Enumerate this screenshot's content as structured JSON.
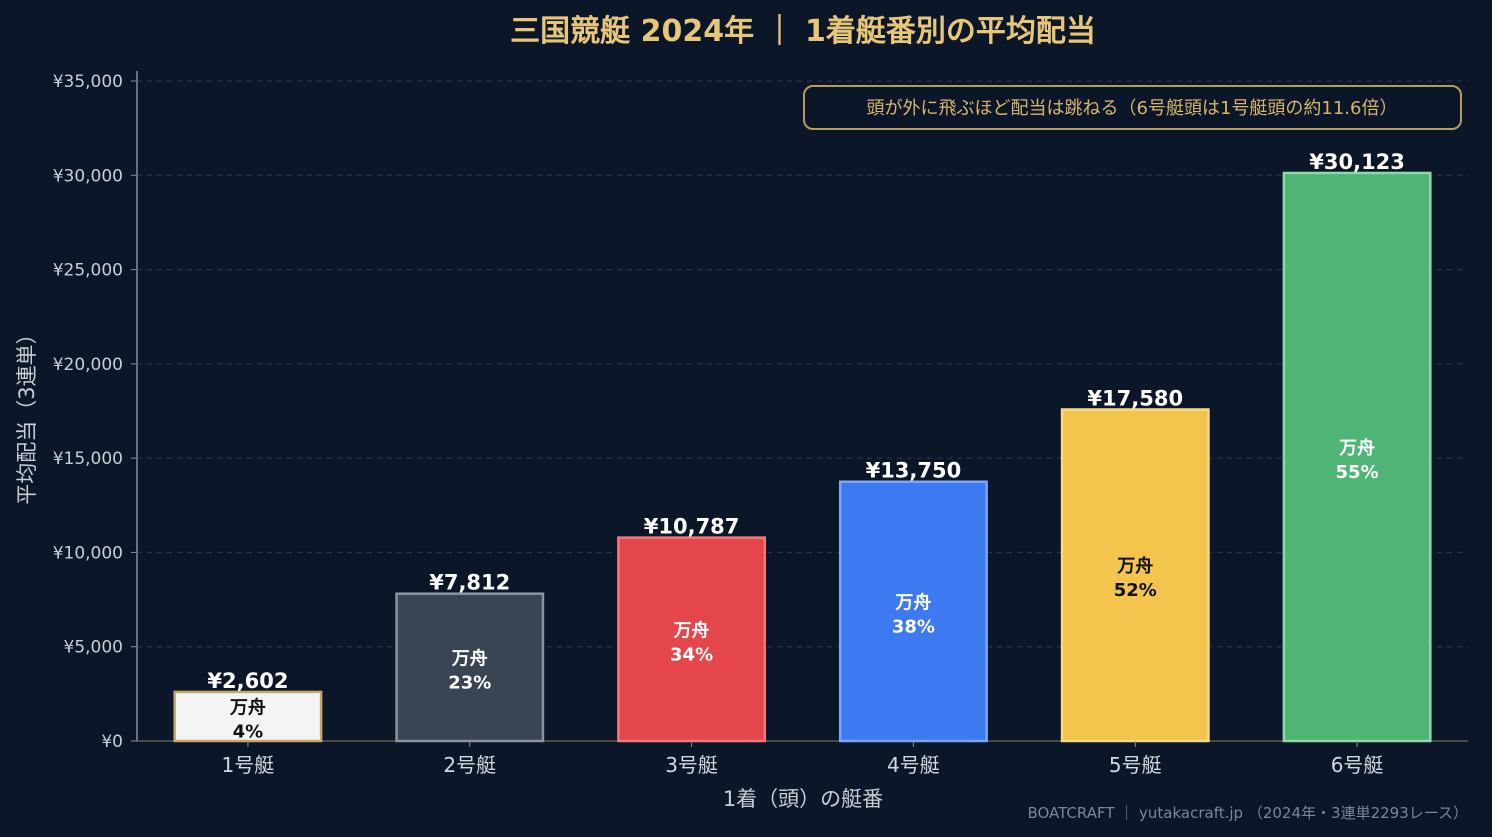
{
  "title": "三国競艇 2024年 ｜ 1着艇番別の平均配当",
  "annotation": "頭が外に飛ぶほど配当は跳ねる（6号艇頭は1号艇頭の約11.6倍）",
  "credit": "BOATCRAFT ｜ yutakacraft.jp （2024年・3連単2293レース）",
  "colors": {
    "background": "#0b1628",
    "title": "#e8c677",
    "annotation_border": "#b89a5c",
    "grid": "#2e3a4a"
  },
  "chart_data": {
    "type": "bar",
    "xlabel": "1着（頭）の艇番",
    "ylabel": "平均配当（3連単）",
    "ylim": [
      0,
      35000
    ],
    "yticks": [
      0,
      5000,
      10000,
      15000,
      20000,
      25000,
      30000,
      35000
    ],
    "ytick_labels": [
      "¥0",
      "¥5,000",
      "¥10,000",
      "¥15,000",
      "¥20,000",
      "¥25,000",
      "¥30,000",
      "¥35,000"
    ],
    "grid": true,
    "categories": [
      "1号艇",
      "2号艇",
      "3号艇",
      "4号艇",
      "5号艇",
      "6号艇"
    ],
    "values": [
      2602,
      7812,
      10787,
      13750,
      17580,
      30123
    ],
    "value_labels": [
      "¥2,602",
      "¥7,812",
      "¥10,787",
      "¥13,750",
      "¥17,580",
      "¥30,123"
    ],
    "inner_label_title": "万舟",
    "manshu_percent": [
      4,
      23,
      34,
      38,
      52,
      55
    ],
    "manshu_labels": [
      "4%",
      "23%",
      "34%",
      "38%",
      "52%",
      "55%"
    ],
    "bar_colors": [
      "#f4f4f4",
      "#3b4452",
      "#e5464c",
      "#3d7af2",
      "#f3c54d",
      "#4fb574"
    ],
    "bar_edge_colors": [
      "#c8a868",
      "#8b93a0",
      "#f07a7e",
      "#7aa7f8",
      "#f6d98a",
      "#8fd8a8"
    ],
    "inner_text_colors": [
      "#111111",
      "#ffffff",
      "#ffffff",
      "#ffffff",
      "#111111",
      "#ffffff"
    ]
  }
}
